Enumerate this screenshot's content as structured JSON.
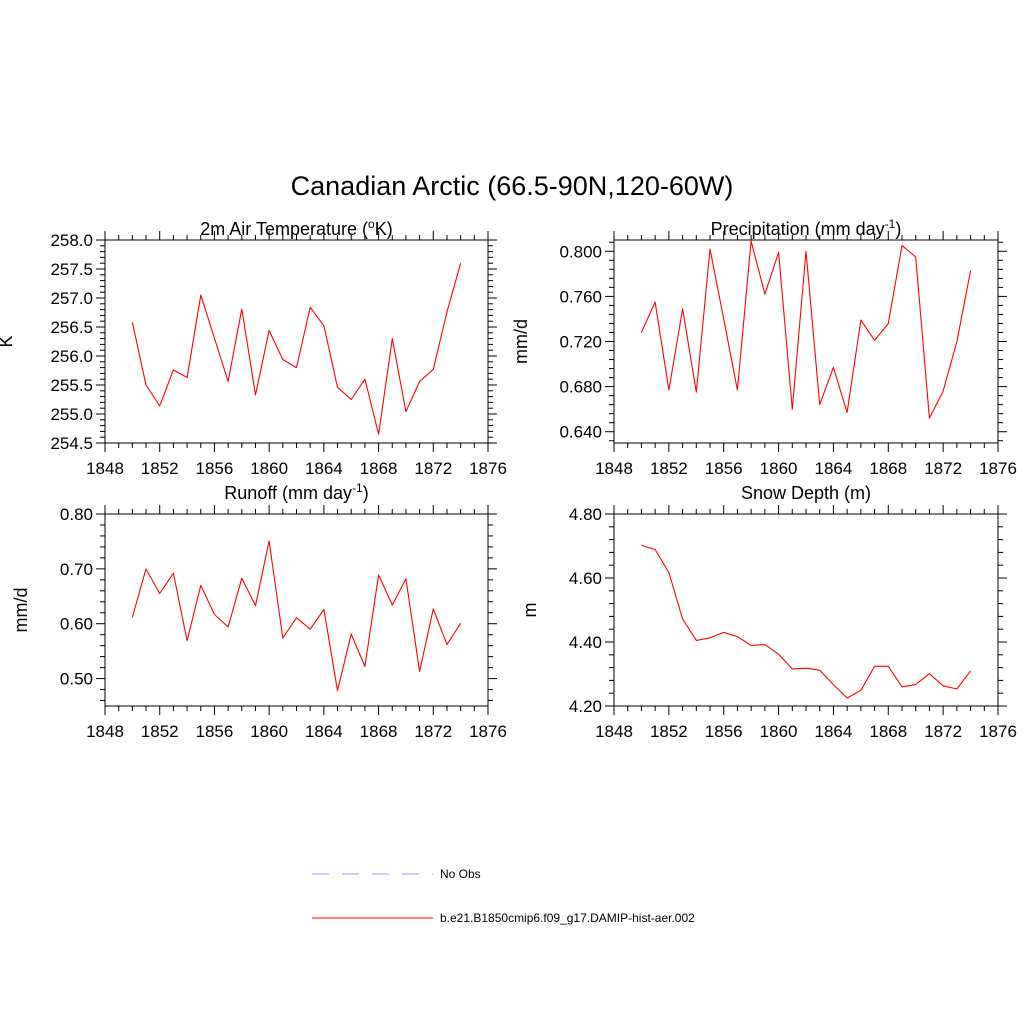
{
  "title": "Canadian Arctic (66.5-90N,120-60W)",
  "colors": {
    "model_line": "#ff0000",
    "obs_line": "#9999ff",
    "axis": "#000000"
  },
  "legend": {
    "items": [
      {
        "label": "No Obs",
        "style": "dashed",
        "color": "#9999ff"
      },
      {
        "label": "b.e21.B1850cmip6.f09_g17.DAMIP-hist-aer.002",
        "style": "solid",
        "color": "#ff0000"
      }
    ]
  },
  "chart_data": [
    {
      "type": "line",
      "title_main": "2m Air Temperature (",
      "title_sup": "o",
      "title_tail": "K)",
      "ylabel": "K",
      "xlim": [
        1848,
        1876
      ],
      "ylim": [
        254.5,
        258.0
      ],
      "xticks": [
        "1848",
        "1852",
        "1856",
        "1860",
        "1864",
        "1868",
        "1872",
        "1876"
      ],
      "yticks": [
        "254.5",
        "255.0",
        "255.5",
        "256.0",
        "256.5",
        "257.0",
        "257.5",
        "258.0"
      ],
      "series": [
        {
          "x": [
            1850,
            1851,
            1852,
            1853,
            1854,
            1855,
            1856,
            1857,
            1858,
            1859,
            1860,
            1861,
            1862,
            1863,
            1864,
            1865,
            1866,
            1867,
            1868,
            1869,
            1870,
            1871,
            1872,
            1873,
            1874
          ],
          "values": [
            256.58,
            255.5,
            255.14,
            255.76,
            255.63,
            257.05,
            256.31,
            255.56,
            256.81,
            255.33,
            256.44,
            255.94,
            255.8,
            256.84,
            256.52,
            255.46,
            255.25,
            255.6,
            254.65,
            256.3,
            255.04,
            255.56,
            255.77,
            256.76,
            257.6
          ]
        }
      ]
    },
    {
      "type": "line",
      "title_main": "Precipitation (mm day",
      "title_sup": "-1",
      "title_tail": ")",
      "ylabel": "mm/d",
      "xlim": [
        1848,
        1876
      ],
      "ylim": [
        0.63,
        0.81
      ],
      "xticks": [
        "1848",
        "1852",
        "1856",
        "1860",
        "1864",
        "1868",
        "1872",
        "1876"
      ],
      "yticks": [
        "0.640",
        "0.680",
        "0.720",
        "0.760",
        "0.800"
      ],
      "series": [
        {
          "x": [
            1850,
            1851,
            1852,
            1853,
            1854,
            1855,
            1856,
            1857,
            1858,
            1859,
            1860,
            1861,
            1862,
            1863,
            1864,
            1865,
            1866,
            1867,
            1868,
            1869,
            1870,
            1871,
            1872,
            1873,
            1874
          ],
          "values": [
            0.728,
            0.755,
            0.677,
            0.749,
            0.675,
            0.802,
            0.74,
            0.677,
            0.809,
            0.762,
            0.799,
            0.66,
            0.8,
            0.664,
            0.697,
            0.657,
            0.739,
            0.721,
            0.736,
            0.805,
            0.795,
            0.652,
            0.676,
            0.72,
            0.783
          ]
        }
      ]
    },
    {
      "type": "line",
      "title_main": "Runoff (mm day",
      "title_sup": "-1",
      "title_tail": ")",
      "ylabel": "mm/d",
      "xlim": [
        1848,
        1876
      ],
      "ylim": [
        0.45,
        0.8
      ],
      "xticks": [
        "1848",
        "1852",
        "1856",
        "1860",
        "1864",
        "1868",
        "1872",
        "1876"
      ],
      "yticks": [
        "0.50",
        "0.60",
        "0.70",
        "0.80"
      ],
      "series": [
        {
          "x": [
            1850,
            1851,
            1852,
            1853,
            1854,
            1855,
            1856,
            1857,
            1858,
            1859,
            1860,
            1861,
            1862,
            1863,
            1864,
            1865,
            1866,
            1867,
            1868,
            1869,
            1870,
            1871,
            1872,
            1873,
            1874
          ],
          "values": [
            0.612,
            0.7,
            0.655,
            0.692,
            0.569,
            0.67,
            0.617,
            0.594,
            0.683,
            0.633,
            0.751,
            0.574,
            0.611,
            0.59,
            0.626,
            0.478,
            0.581,
            0.522,
            0.689,
            0.634,
            0.682,
            0.513,
            0.627,
            0.562,
            0.601
          ]
        }
      ]
    },
    {
      "type": "line",
      "title_main": "Snow Depth (m)",
      "title_sup": "",
      "title_tail": "",
      "ylabel": "m",
      "xlim": [
        1848,
        1876
      ],
      "ylim": [
        4.2,
        4.8
      ],
      "xticks": [
        "1848",
        "1852",
        "1856",
        "1860",
        "1864",
        "1868",
        "1872",
        "1876"
      ],
      "yticks": [
        "4.20",
        "4.40",
        "4.60",
        "4.80"
      ],
      "series": [
        {
          "x": [
            1850,
            1851,
            1852,
            1853,
            1854,
            1855,
            1856,
            1857,
            1858,
            1859,
            1860,
            1861,
            1862,
            1863,
            1864,
            1865,
            1866,
            1867,
            1868,
            1869,
            1870,
            1871,
            1872,
            1873,
            1874
          ],
          "values": [
            4.702,
            4.689,
            4.617,
            4.472,
            4.405,
            4.413,
            4.43,
            4.417,
            4.389,
            4.392,
            4.362,
            4.316,
            4.318,
            4.312,
            4.267,
            4.225,
            4.249,
            4.324,
            4.324,
            4.26,
            4.267,
            4.301,
            4.263,
            4.253,
            4.31
          ]
        }
      ]
    }
  ]
}
